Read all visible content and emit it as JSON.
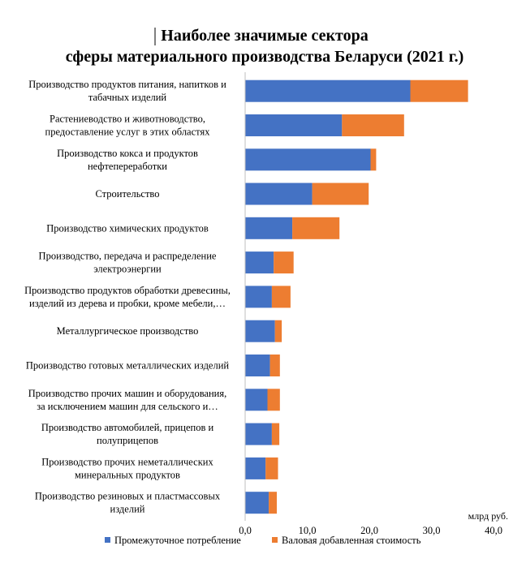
{
  "chart_data": {
    "type": "bar",
    "orientation": "horizontal",
    "stacked": true,
    "title_lines": [
      "Наиболее значимые сектора",
      "сферы материального производства Беларуси (2021 г.)"
    ],
    "categories": [
      [
        "Производство продуктов питания, напитков и",
        "табачных изделий"
      ],
      [
        "Растениеводство и животноводство,",
        "предоставление услуг в этих областях"
      ],
      [
        "Производство кокса и продуктов",
        "нефтепереработки"
      ],
      [
        "Строительство"
      ],
      [
        "Производство химических продуктов"
      ],
      [
        "Производство, передача и распределение",
        "электроэнергии"
      ],
      [
        "Производство продуктов обработки древесины,",
        "изделий из дерева и пробки, кроме мебели,…"
      ],
      [
        "Металлургическое производство"
      ],
      [
        "Производство готовых металлических изделий"
      ],
      [
        "Производство прочих машин и оборудования,",
        "за исключением машин для сельского и…"
      ],
      [
        "Производство автомобилей, прицепов и",
        "полуприцепов"
      ],
      [
        "Производство прочих неметаллических",
        "минеральных продуктов"
      ],
      [
        "Производство резиновых и пластмассовых",
        "изделий"
      ]
    ],
    "series": [
      {
        "name": "Промежуточное потребление",
        "color": "#4472C4",
        "values": [
          26.6,
          15.6,
          20.2,
          10.8,
          7.6,
          4.6,
          4.3,
          4.8,
          4.0,
          3.6,
          4.3,
          3.3,
          3.8
        ]
      },
      {
        "name": "Валовая добавленная стоимость",
        "color": "#ED7D31",
        "values": [
          9.3,
          10.0,
          0.9,
          9.1,
          7.6,
          3.2,
          3.0,
          1.1,
          1.6,
          2.0,
          1.2,
          2.0,
          1.3
        ]
      }
    ],
    "x_ticks": [
      "0,0",
      "10,0",
      "20,0",
      "30,0",
      "40,0"
    ],
    "xlim": [
      0,
      40
    ],
    "unit_label": "млрд руб.",
    "legend_position": "bottom",
    "grid": false
  }
}
